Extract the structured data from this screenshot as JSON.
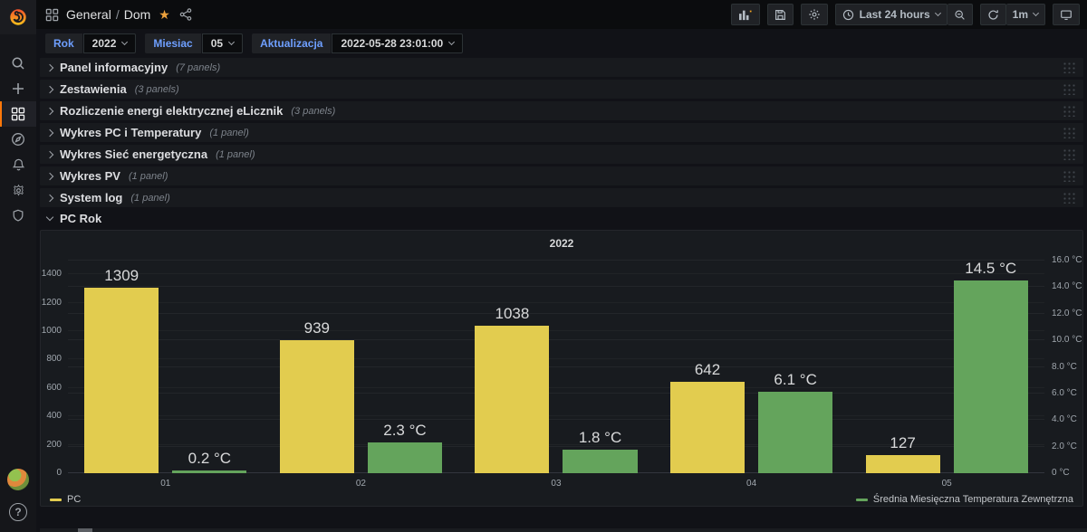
{
  "header": {
    "breadcrumb_section": "General",
    "breadcrumb_sep": "/",
    "breadcrumb_page": "Dom",
    "time_range": "Last 24 hours",
    "refresh_interval": "1m"
  },
  "sidebar": {
    "icons": [
      {
        "name": "search-icon"
      },
      {
        "name": "create-plus-icon"
      },
      {
        "name": "dashboards-icon",
        "active": true
      },
      {
        "name": "explore-compass-icon"
      },
      {
        "name": "alerting-bell-icon"
      },
      {
        "name": "configuration-gear-icon"
      },
      {
        "name": "server-admin-shield-icon"
      }
    ],
    "help_label": "?"
  },
  "variables": [
    {
      "label": "Rok",
      "value": "2022"
    },
    {
      "label": "Miesiac",
      "value": "05"
    },
    {
      "label": "Aktualizacja",
      "value": "2022-05-28 23:01:00"
    }
  ],
  "rows": [
    {
      "title": "Panel informacyjny",
      "count": "(7 panels)",
      "collapsed": true
    },
    {
      "title": "Zestawienia",
      "count": "(3 panels)",
      "collapsed": true
    },
    {
      "title": "Rozliczenie energi elektrycznej eLicznik",
      "count": "(3 panels)",
      "collapsed": true
    },
    {
      "title": "Wykres PC i Temperatury",
      "count": "(1 panel)",
      "collapsed": true
    },
    {
      "title": "Wykres Sieć energetyczna",
      "count": "(1 panel)",
      "collapsed": true
    },
    {
      "title": "Wykres PV",
      "count": "(1 panel)",
      "collapsed": true
    },
    {
      "title": "System log",
      "count": "(1 panel)",
      "collapsed": true
    },
    {
      "title": "PC Rok",
      "count": "",
      "collapsed": false
    }
  ],
  "chart_data": {
    "type": "bar",
    "title": "2022",
    "categories": [
      "01",
      "02",
      "03",
      "04",
      "05"
    ],
    "series": [
      {
        "name": "PC",
        "axis": "left",
        "color": "#E2CC4F",
        "values": [
          1309,
          939,
          1038,
          642,
          127
        ],
        "labels": [
          "1309",
          "939",
          "1038",
          "642",
          "127"
        ]
      },
      {
        "name": "Średnia Miesięczna Temperatura Zewnętrzna",
        "axis": "right",
        "color": "#64A45C",
        "values": [
          0.2,
          2.3,
          1.8,
          6.1,
          14.5
        ],
        "labels": [
          "0.2 °C",
          "2.3 °C",
          "1.8 °C",
          "6.1 °C",
          "14.5 °C"
        ]
      }
    ],
    "left_axis": {
      "ticks": [
        1400,
        1200,
        1000,
        800,
        600,
        400,
        200,
        0
      ],
      "scale_max": 1497
    },
    "right_axis": {
      "tick_labels": [
        "16.0 °C",
        "14.0 °C",
        "12.0 °C",
        "10.0 °C",
        "8.0 °C",
        "6.0 °C",
        "4.0 °C",
        "2.0 °C",
        "0 °C"
      ],
      "tick_values": [
        16,
        14,
        12,
        10,
        8,
        6,
        4,
        2,
        0
      ],
      "scale_max": 16
    },
    "legend_position": "bottom",
    "grid": true
  },
  "colors": {
    "accent_orange": "#FF780A",
    "variable_blue": "#6E9FFF",
    "bar_yellow": "#E2CC4F",
    "bar_green": "#64A45C",
    "star_gold": "#EDA13C"
  }
}
